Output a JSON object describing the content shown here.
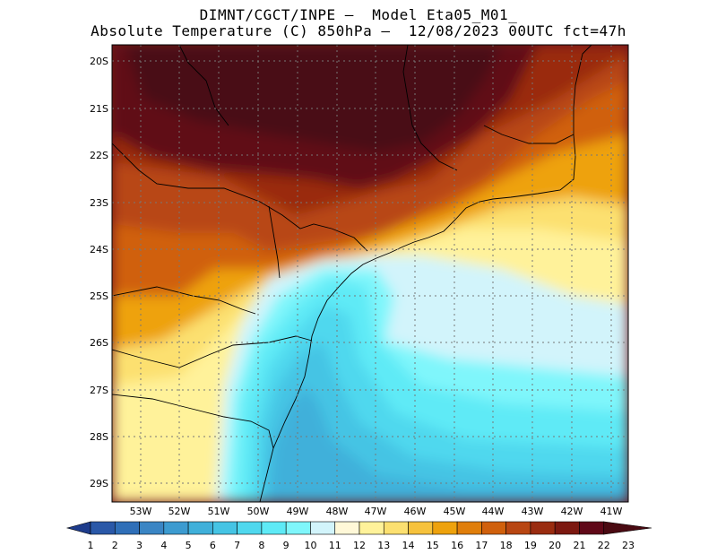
{
  "header": {
    "line1": "DIMNT/CGCT/INPE –  Model Eta05_M01_",
    "line2": "Absolute Temperature (C) 850hPa –  12/08/2023 00UTC fct=47h"
  },
  "map": {
    "lat_labels": [
      "20S",
      "21S",
      "22S",
      "23S",
      "24S",
      "25S",
      "26S",
      "27S",
      "28S",
      "29S"
    ],
    "lon_labels": [
      "53W",
      "52W",
      "51W",
      "50W",
      "49W",
      "48W",
      "47W",
      "46W",
      "45W",
      "44W",
      "43W",
      "42W",
      "41W"
    ]
  },
  "colorbar": {
    "labels": [
      "1",
      "2",
      "3",
      "4",
      "5",
      "6",
      "7",
      "8",
      "9",
      "10",
      "11",
      "12",
      "13",
      "14",
      "15",
      "16",
      "17",
      "18",
      "19",
      "20",
      "21",
      "22",
      "23"
    ],
    "colors": [
      "#1e3c8c",
      "#2a58a8",
      "#2f6fb8",
      "#3a85c4",
      "#3c9bd0",
      "#3fb0da",
      "#45c4e4",
      "#4fd8ee",
      "#5eeaf6",
      "#7ff6fb",
      "#d2f4fb",
      "#fff8d8",
      "#fff29a",
      "#fce070",
      "#f6c23c",
      "#eea20c",
      "#e07e0a",
      "#d0600c",
      "#b84612",
      "#9a2c10",
      "#7c1810",
      "#600818",
      "#4a0a12"
    ]
  }
}
